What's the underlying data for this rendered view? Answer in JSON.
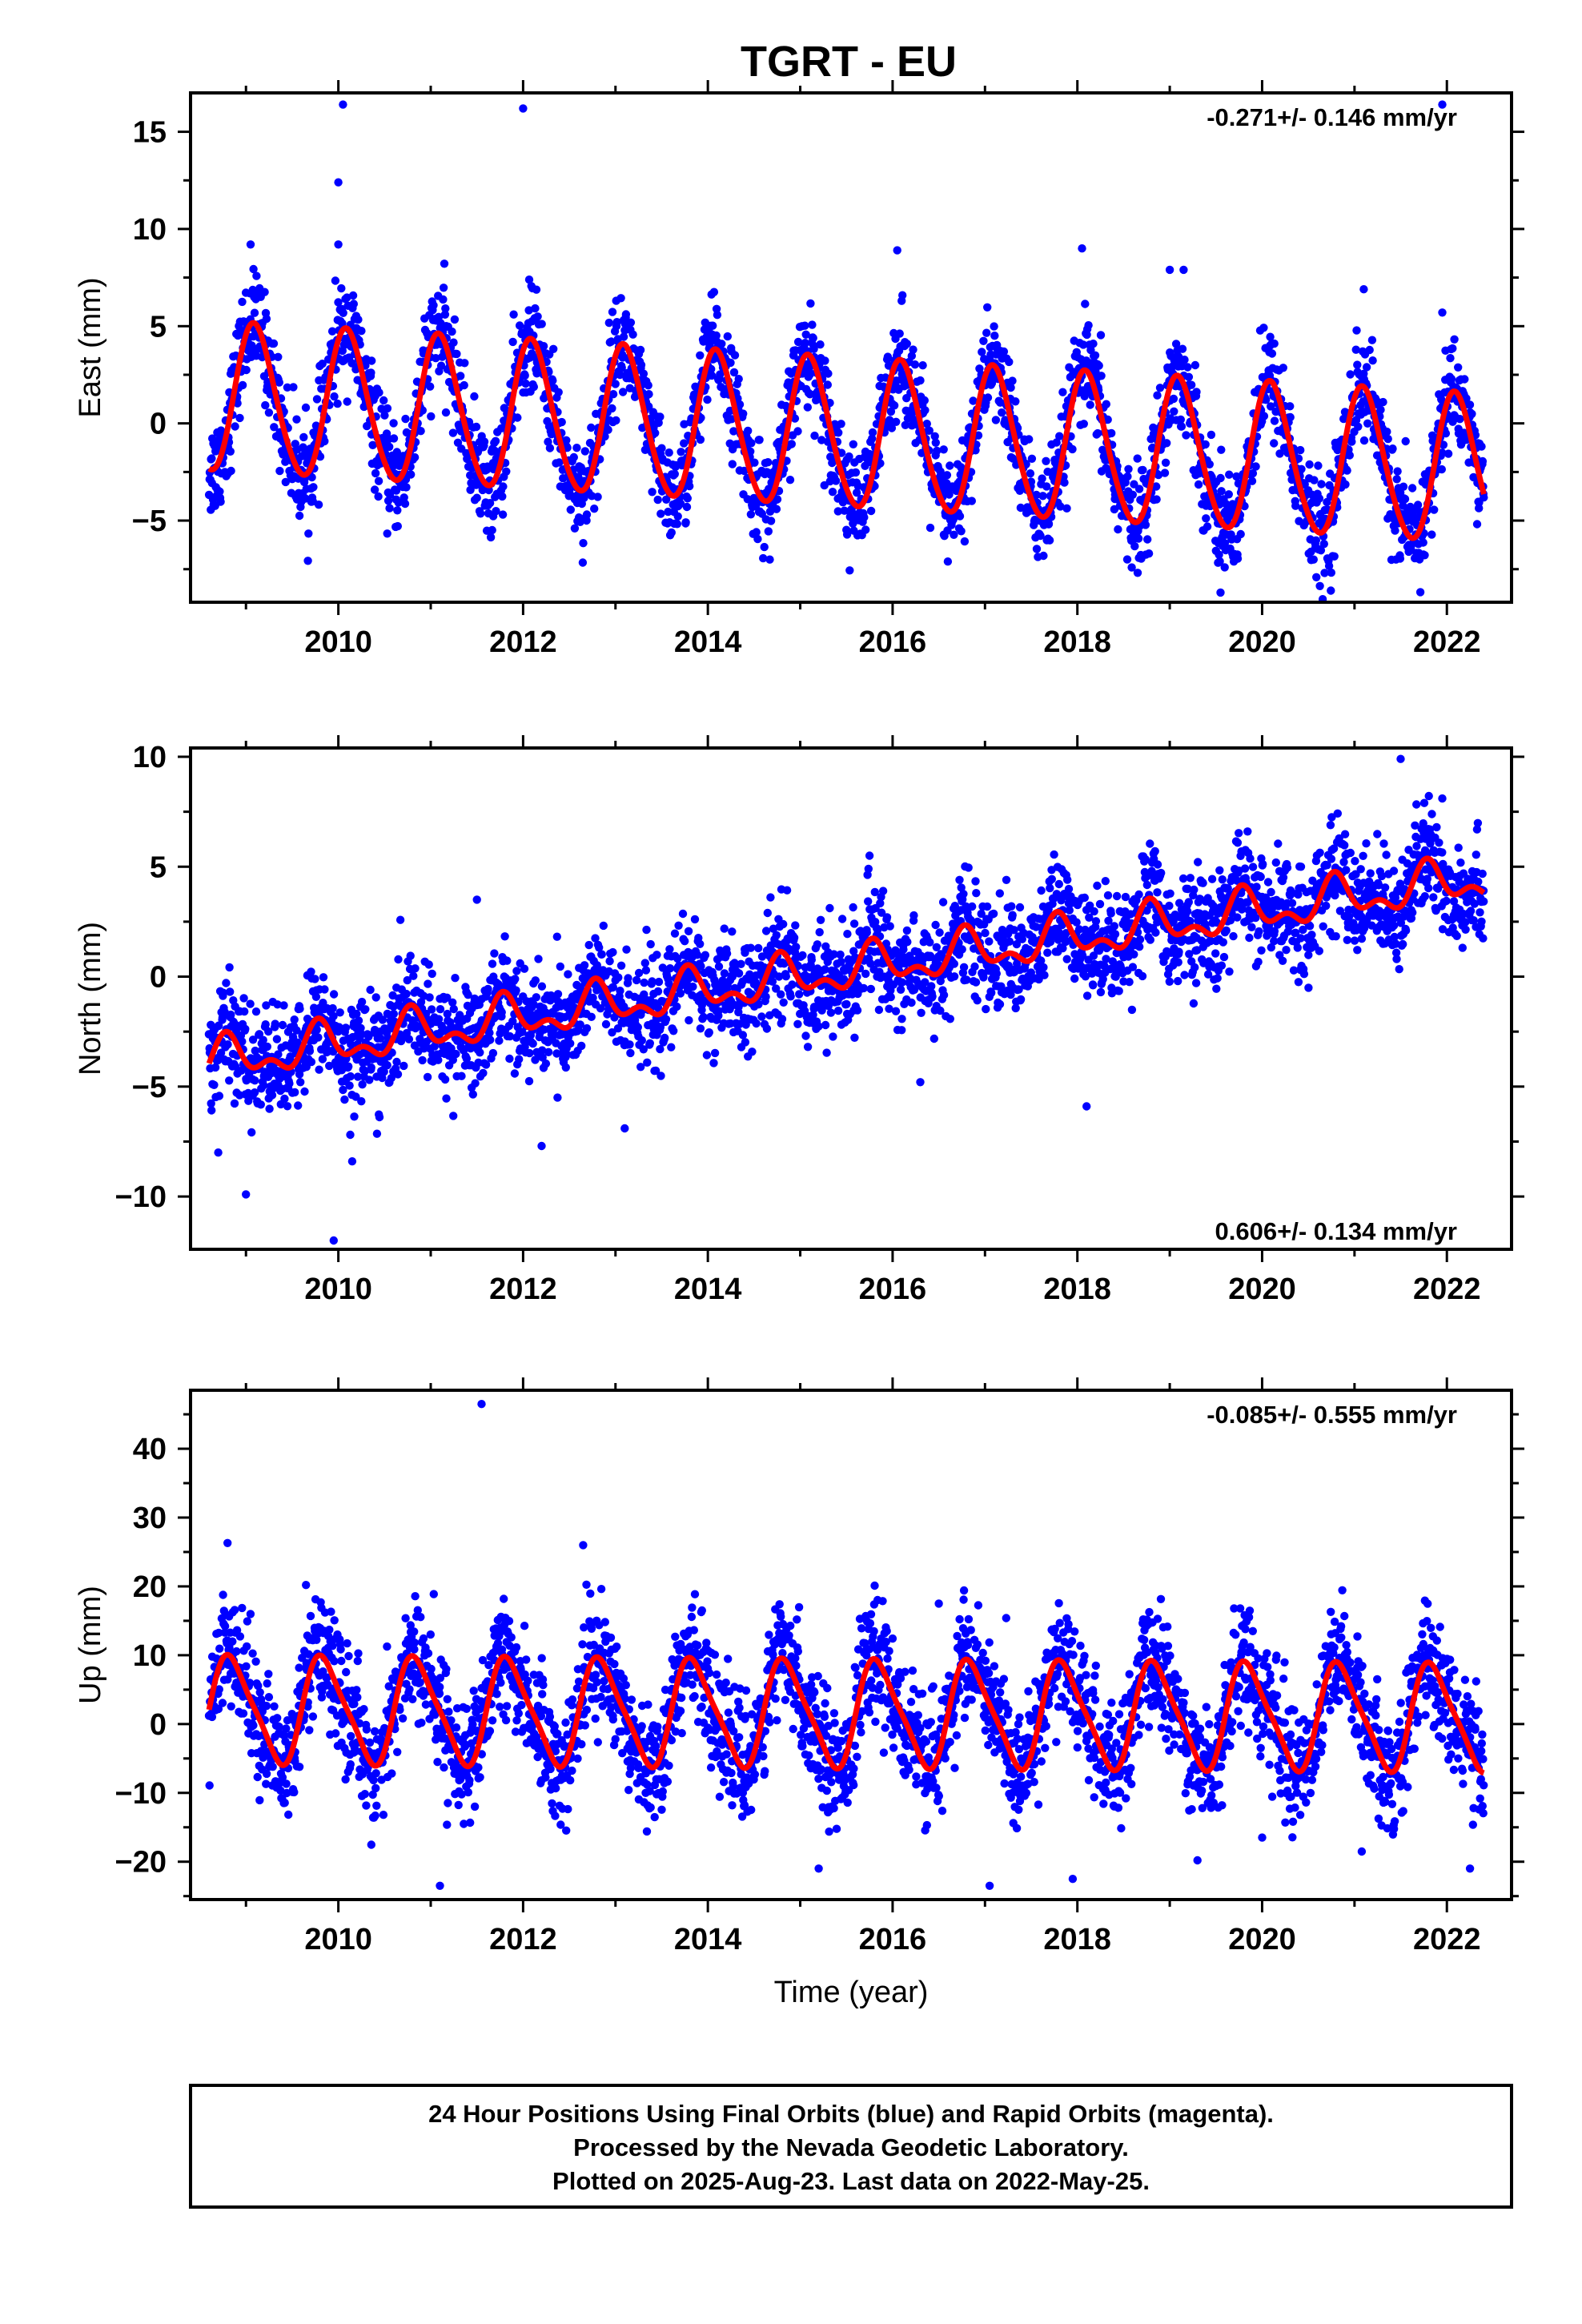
{
  "title": "TGRT - EU",
  "colors": {
    "points": "#0000ff",
    "fit": "#ff0000",
    "frame": "#000000"
  },
  "footer": {
    "line1": "24 Hour Positions Using Final Orbits (blue) and Rapid Orbits (magenta).",
    "line2": "Processed by the Nevada Geodetic Laboratory.",
    "line3": "Plotted on 2025-Aug-23. Last data on 2022-May-25."
  },
  "chart_data": [
    {
      "type": "scatter",
      "name": "east",
      "ylabel": "East (mm)",
      "xlabel": "",
      "rate_label": "-0.271+/- 0.146 mm/yr",
      "xlim": [
        2008.4,
        2022.7
      ],
      "ylim": [
        -9.2,
        17.0
      ],
      "x_ticks": [
        2010,
        2012,
        2014,
        2016,
        2018,
        2020,
        2022
      ],
      "y_ticks": [
        -5,
        0,
        5,
        10,
        15
      ],
      "data_span": [
        2008.6,
        2022.4
      ],
      "model": {
        "offset": -0.6,
        "rate": -0.271,
        "ref_year": 2015.5,
        "annual_amp": 3.8,
        "annual_phase_year": 2008.85,
        "semi_amp": 0.35,
        "semi_phase_year": 2008.9,
        "scatter": 1.3
      },
      "outliers": [
        [
          2010.05,
          16.4
        ],
        [
          2012.0,
          16.2
        ],
        [
          2021.95,
          16.4
        ],
        [
          2010.0,
          12.4
        ],
        [
          2009.05,
          9.2
        ],
        [
          2010.0,
          9.2
        ],
        [
          2016.05,
          8.9
        ],
        [
          2018.05,
          9.0
        ],
        [
          2019.0,
          7.9
        ],
        [
          2019.15,
          7.9
        ],
        [
          2021.1,
          6.9
        ],
        [
          2021.95,
          5.7
        ],
        [
          2019.55,
          -8.7
        ]
      ]
    },
    {
      "type": "scatter",
      "name": "north",
      "ylabel": "North (mm)",
      "xlabel": "",
      "rate_label": "0.606+/- 0.134 mm/yr",
      "xlim": [
        2008.4,
        2022.7
      ],
      "ylim": [
        -12.4,
        10.4
      ],
      "x_ticks": [
        2010,
        2012,
        2014,
        2016,
        2018,
        2020,
        2022
      ],
      "y_ticks": [
        -10,
        -5,
        0,
        5,
        10
      ],
      "data_span": [
        2008.6,
        2022.4
      ],
      "model": {
        "offset": -3.9,
        "rate": 0.606,
        "ref_year": 2008.6,
        "annual_amp": 0.8,
        "annual_phase_year": 2008.55,
        "semi_amp": 0.5,
        "semi_phase_year": 2008.65,
        "scatter": 1.2
      },
      "outliers": [
        [
          2008.7,
          -8.0
        ],
        [
          2009.0,
          -9.9
        ],
        [
          2009.95,
          -12.0
        ],
        [
          2010.15,
          -8.4
        ],
        [
          2012.2,
          -7.7
        ],
        [
          2013.1,
          -6.9
        ],
        [
          2016.3,
          -4.8
        ],
        [
          2018.1,
          -5.9
        ],
        [
          2021.5,
          9.9
        ],
        [
          2021.95,
          8.1
        ],
        [
          2011.5,
          3.5
        ],
        [
          2015.75,
          5.5
        ]
      ]
    },
    {
      "type": "scatter",
      "name": "up",
      "ylabel": "Up (mm)",
      "xlabel": "Time (year)",
      "rate_label": "-0.085+/- 0.555 mm/yr",
      "xlim": [
        2008.4,
        2022.7
      ],
      "ylim": [
        -25.5,
        48.5
      ],
      "x_ticks": [
        2010,
        2012,
        2014,
        2016,
        2018,
        2020,
        2022
      ],
      "y_ticks": [
        -20,
        -10,
        0,
        10,
        20,
        30,
        40
      ],
      "data_span": [
        2008.6,
        2022.4
      ],
      "model": {
        "offset": 1.5,
        "rate": -0.085,
        "ref_year": 2015.5,
        "annual_amp": 7.5,
        "annual_phase_year": 2008.6,
        "semi_amp": 1.5,
        "semi_phase_year": 2008.6,
        "scatter": 4.2
      },
      "outliers": [
        [
          2011.55,
          46.5
        ],
        [
          2008.8,
          26.3
        ],
        [
          2012.65,
          26.0
        ],
        [
          2009.65,
          20.2
        ],
        [
          2011.1,
          -23.5
        ],
        [
          2015.2,
          -21.0
        ],
        [
          2017.05,
          -23.5
        ],
        [
          2017.95,
          -22.5
        ],
        [
          2022.25,
          -21.0
        ],
        [
          2019.3,
          -19.8
        ],
        [
          2020.0,
          -16.5
        ],
        [
          2016.5,
          17.5
        ]
      ]
    }
  ]
}
